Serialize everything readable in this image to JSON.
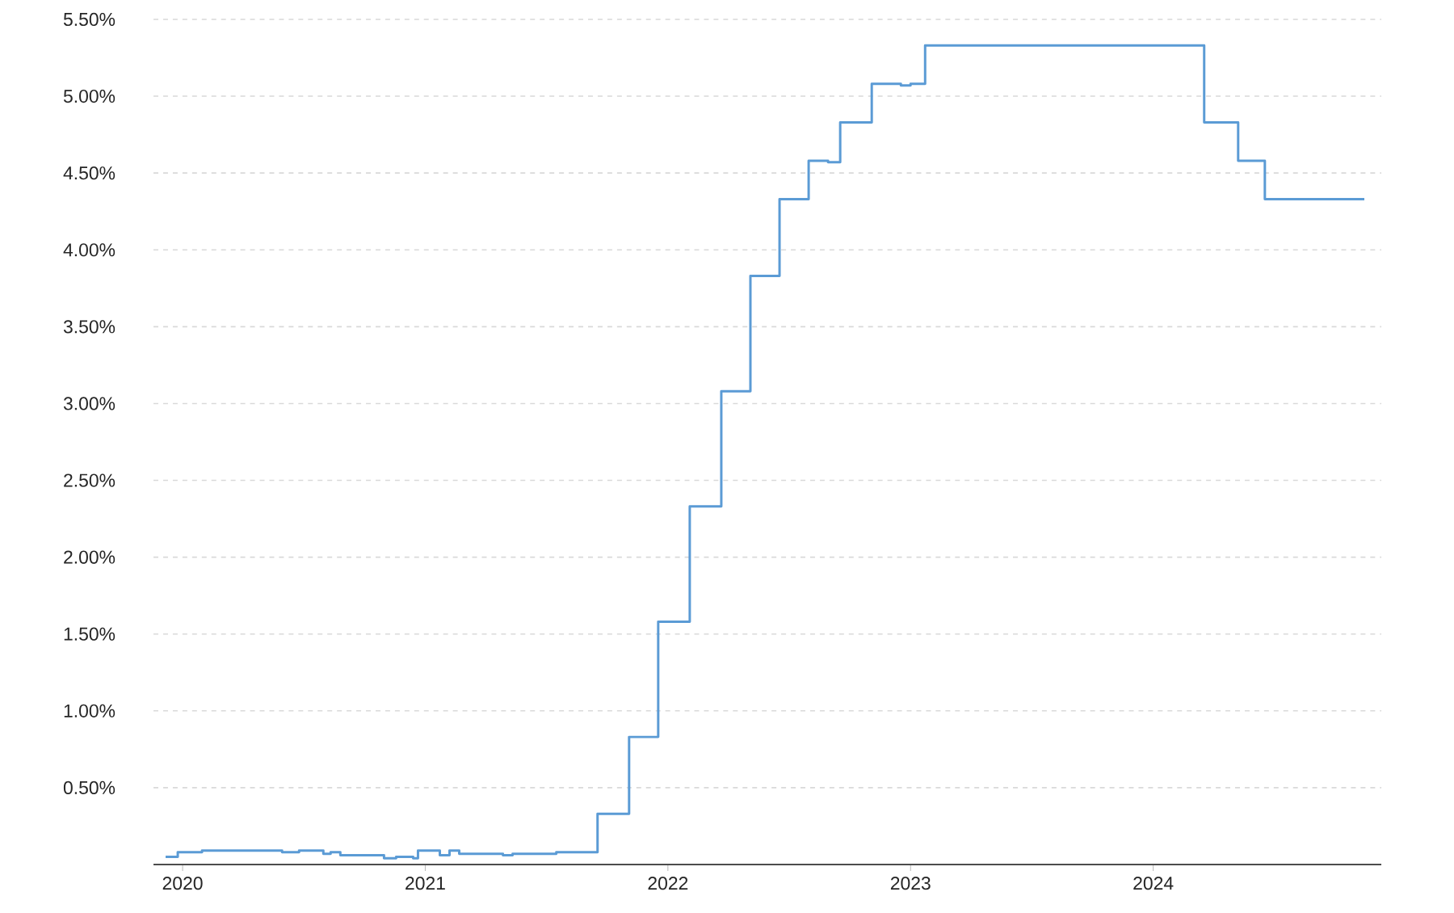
{
  "chart_data": {
    "type": "step",
    "x": [
      2019.93,
      2019.98,
      2020.08,
      2020.18,
      2020.41,
      2020.48,
      2020.58,
      2020.61,
      2020.65,
      2020.81,
      2020.83,
      2020.88,
      2020.95,
      2020.97,
      2021.06,
      2021.1,
      2021.14,
      2021.32,
      2021.36,
      2021.51,
      2021.54,
      2021.71,
      2021.84,
      2021.96,
      2022.09,
      2022.22,
      2022.34,
      2022.46,
      2022.58,
      2022.66,
      2022.71,
      2022.84,
      2022.96,
      2023.0,
      2023.06,
      2024.21,
      2024.35,
      2024.46,
      2024.87
    ],
    "series": [
      {
        "color": "#5b9bd5",
        "values": [
          0.05,
          0.08,
          0.09,
          0.09,
          0.08,
          0.09,
          0.07,
          0.08,
          0.06,
          0.06,
          0.04,
          0.05,
          0.04,
          0.09,
          0.06,
          0.09,
          0.07,
          0.06,
          0.07,
          0.07,
          0.08,
          0.33,
          0.83,
          1.58,
          2.33,
          3.08,
          3.83,
          4.33,
          4.58,
          4.57,
          4.83,
          5.08,
          5.07,
          5.08,
          5.33,
          4.83,
          4.58,
          4.33,
          4.33
        ]
      }
    ],
    "xlim": [
      2019.88,
      2024.94
    ],
    "xticks": [
      2020,
      2021,
      2022,
      2023,
      2024
    ],
    "ylim": [
      0,
      5.5
    ],
    "yticks": [
      {
        "value": 0.5,
        "label": "0.50%"
      },
      {
        "value": 1.0,
        "label": "1.00%"
      },
      {
        "value": 1.5,
        "label": "1.50%"
      },
      {
        "value": 2.0,
        "label": "2.00%"
      },
      {
        "value": 2.5,
        "label": "2.50%"
      },
      {
        "value": 3.0,
        "label": "3.00%"
      },
      {
        "value": 3.5,
        "label": "3.50%"
      },
      {
        "value": 4.0,
        "label": "4.00%"
      },
      {
        "value": 4.5,
        "label": "4.50%"
      },
      {
        "value": 5.0,
        "label": "5.00%"
      },
      {
        "value": 5.5,
        "label": "5.50%"
      }
    ],
    "grid": "y",
    "marker": "none",
    "line_style": "solid"
  }
}
